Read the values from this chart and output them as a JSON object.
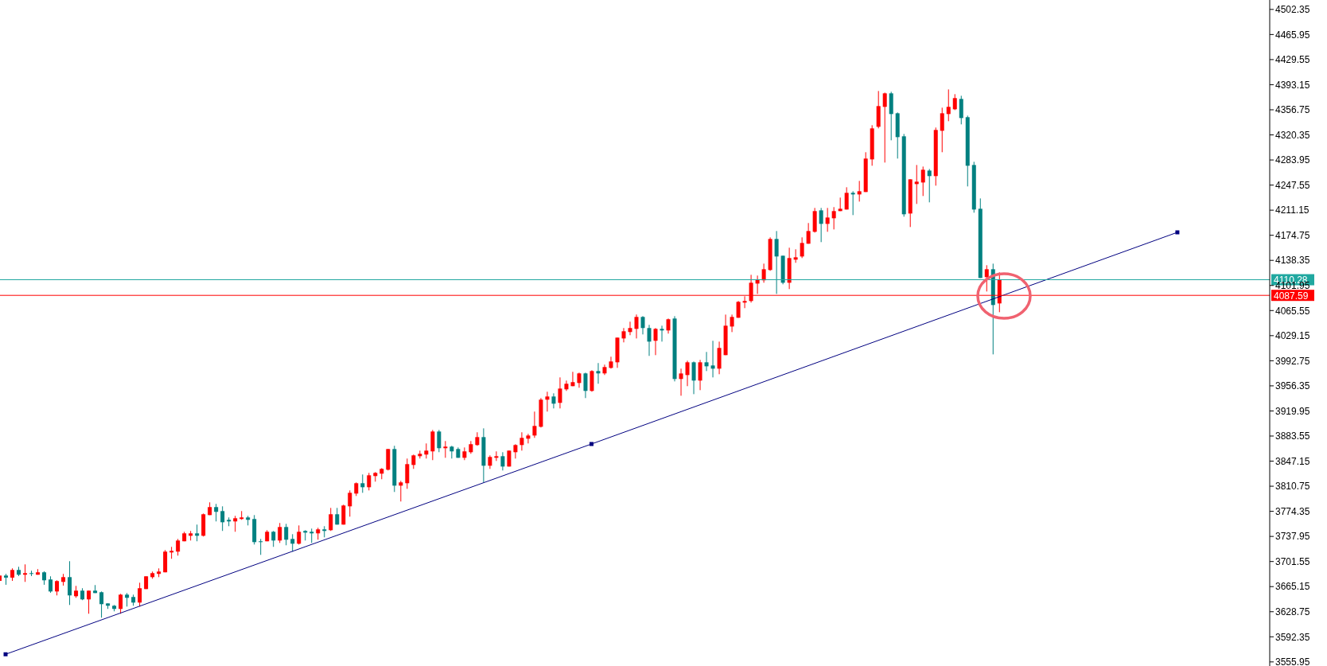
{
  "chart_data": {
    "type": "candlestick",
    "tick_labels": "y",
    "categories": [
      null,
      null,
      null,
      null,
      null,
      null,
      null,
      null,
      null,
      null,
      null,
      null,
      null,
      null,
      null,
      null,
      null,
      null,
      null,
      null,
      null,
      null,
      null,
      null,
      null,
      null,
      null,
      null,
      null,
      null,
      null,
      null,
      null,
      null,
      null,
      null,
      null,
      null,
      null,
      null,
      null,
      null,
      null,
      null,
      null,
      null,
      null,
      null,
      null,
      null,
      null,
      null,
      null,
      null,
      null,
      null,
      null,
      null,
      null,
      null,
      null,
      null,
      null,
      null,
      null,
      null,
      null,
      null,
      null,
      null,
      null,
      null,
      null,
      null,
      null,
      null,
      null,
      null,
      null,
      null,
      null,
      null,
      null,
      null,
      null,
      null,
      null,
      null,
      null,
      null,
      null,
      null,
      null,
      null,
      null,
      null,
      null,
      null,
      null,
      null,
      null,
      null,
      null,
      null,
      null,
      null,
      null,
      null,
      null,
      null,
      null,
      null,
      null,
      null,
      null,
      null,
      null,
      null,
      null,
      null,
      null,
      null,
      null,
      null,
      null,
      null,
      null,
      null,
      null,
      null,
      null,
      null,
      null,
      null,
      null,
      null,
      null,
      null,
      null,
      null,
      null,
      null,
      null,
      null,
      null,
      null,
      null,
      null,
      null,
      null,
      null,
      null,
      null,
      null,
      null,
      null,
      null,
      null,
      null,
      null,
      null,
      null,
      null,
      null,
      null,
      null,
      null,
      null,
      null,
      null,
      null,
      null,
      null,
      null,
      null,
      null,
      null,
      null,
      null,
      null,
      null,
      null,
      null,
      null,
      null,
      null,
      null,
      null,
      null,
      null,
      null,
      null,
      null,
      null,
      null,
      null,
      null,
      null,
      null,
      null
    ],
    "ohlc": [
      [
        3673.5,
        3682.0,
        3673.5,
        3681.2
      ],
      [
        3681.2,
        3683.6,
        3667.8,
        3678.2
      ],
      [
        3678.2,
        3691.6,
        3673.5,
        3689.3
      ],
      [
        3689.3,
        3693.9,
        3680.5,
        3682.4
      ],
      [
        3682.4,
        3697.4,
        3672.0,
        3684.7
      ],
      [
        3684.7,
        3688.2,
        3680.5,
        3683.6
      ],
      [
        3682.4,
        3690.5,
        3682.4,
        3685.9
      ],
      [
        3685.9,
        3687.4,
        3667.8,
        3674.3
      ],
      [
        3675.5,
        3680.1,
        3656.2,
        3658.1
      ],
      [
        3658.1,
        3674.3,
        3652.4,
        3673.2
      ],
      [
        3672.0,
        3683.6,
        3666.6,
        3678.9
      ],
      [
        3678.9,
        3702.0,
        3638.5,
        3652.4
      ],
      [
        3651.2,
        3666.2,
        3648.9,
        3659.3
      ],
      [
        3659.3,
        3662.8,
        3645.5,
        3646.6
      ],
      [
        3646.6,
        3659.3,
        3625.8,
        3659.3
      ],
      [
        3659.3,
        3667.4,
        3655.8,
        3655.8
      ],
      [
        3657.0,
        3658.1,
        3620.1,
        3639.7
      ],
      [
        3640.8,
        3640.8,
        3632.8,
        3637.4
      ],
      [
        3637.4,
        3638.5,
        3629.3,
        3632.8
      ],
      [
        3632.8,
        3654.7,
        3625.8,
        3653.5
      ],
      [
        3653.5,
        3655.8,
        3636.2,
        3648.9
      ],
      [
        3650.1,
        3653.5,
        3637.4,
        3642.0
      ],
      [
        3642.0,
        3670.8,
        3636.2,
        3662.8
      ],
      [
        3661.6,
        3680.1,
        3661.6,
        3680.1
      ],
      [
        3678.9,
        3687.0,
        3676.6,
        3684.7
      ],
      [
        3683.6,
        3691.6,
        3678.9,
        3687.0
      ],
      [
        3685.9,
        3718.2,
        3685.9,
        3715.9
      ],
      [
        3714.7,
        3722.8,
        3705.5,
        3717.0
      ],
      [
        3715.9,
        3734.3,
        3710.1,
        3732.0
      ],
      [
        3730.9,
        3744.7,
        3730.9,
        3742.4
      ],
      [
        3738.9,
        3745.9,
        3732.0,
        3742.4
      ],
      [
        3742.4,
        3755.1,
        3730.9,
        3738.9
      ],
      [
        3738.9,
        3771.2,
        3737.8,
        3770.1
      ],
      [
        3768.9,
        3787.4,
        3768.9,
        3780.5
      ],
      [
        3780.5,
        3785.1,
        3759.7,
        3773.6
      ],
      [
        3774.7,
        3781.6,
        3745.9,
        3758.5
      ],
      [
        3762.0,
        3765.5,
        3752.8,
        3759.7
      ],
      [
        3759.7,
        3767.8,
        3744.7,
        3764.3
      ],
      [
        3763.2,
        3774.7,
        3762.0,
        3765.5
      ],
      [
        3765.5,
        3767.8,
        3753.9,
        3762.0
      ],
      [
        3763.2,
        3768.9,
        3726.2,
        3729.7
      ],
      [
        3730.9,
        3734.3,
        3711.2,
        3729.7
      ],
      [
        3730.9,
        3747.0,
        3730.9,
        3744.7
      ],
      [
        3744.7,
        3745.9,
        3722.8,
        3732.0
      ],
      [
        3732.0,
        3757.4,
        3728.5,
        3751.6
      ],
      [
        3751.6,
        3756.2,
        3725.1,
        3733.2
      ],
      [
        3734.3,
        3741.2,
        3715.9,
        3727.4
      ],
      [
        3727.4,
        3753.9,
        3726.2,
        3744.7
      ],
      [
        3745.9,
        3747.0,
        3732.0,
        3743.5
      ],
      [
        3744.7,
        3749.3,
        3728.5,
        3742.4
      ],
      [
        3742.4,
        3750.5,
        3733.2,
        3748.2
      ],
      [
        3748.2,
        3752.8,
        3736.6,
        3745.9
      ],
      [
        3747.0,
        3779.3,
        3745.9,
        3770.1
      ],
      [
        3770.1,
        3779.3,
        3755.1,
        3755.1
      ],
      [
        3755.1,
        3784.0,
        3755.1,
        3782.8
      ],
      [
        3781.6,
        3804.7,
        3766.6,
        3801.2
      ],
      [
        3800.1,
        3816.3,
        3796.6,
        3815.1
      ],
      [
        3815.1,
        3827.8,
        3801.2,
        3809.3
      ],
      [
        3809.3,
        3830.1,
        3804.7,
        3826.6
      ],
      [
        3825.5,
        3831.3,
        3817.4,
        3830.1
      ],
      [
        3829.0,
        3837.0,
        3820.9,
        3835.9
      ],
      [
        3834.7,
        3864.7,
        3833.6,
        3864.7
      ],
      [
        3864.7,
        3869.4,
        3802.4,
        3811.6
      ],
      [
        3811.6,
        3818.6,
        3788.6,
        3816.3
      ],
      [
        3815.1,
        3850.9,
        3807.0,
        3842.8
      ],
      [
        3841.6,
        3856.7,
        3835.9,
        3855.5
      ],
      [
        3854.3,
        3862.4,
        3850.9,
        3857.8
      ],
      [
        3856.7,
        3872.8,
        3850.9,
        3862.4
      ],
      [
        3861.3,
        3892.4,
        3848.6,
        3890.1
      ],
      [
        3890.1,
        3892.4,
        3860.1,
        3865.9
      ],
      [
        3865.9,
        3876.3,
        3852.0,
        3868.2
      ],
      [
        3868.2,
        3869.4,
        3850.9,
        3861.3
      ],
      [
        3864.7,
        3867.0,
        3852.0,
        3852.0
      ],
      [
        3852.0,
        3867.0,
        3848.6,
        3861.3
      ],
      [
        3860.1,
        3876.3,
        3857.8,
        3871.7
      ],
      [
        3870.5,
        3889.0,
        3869.4,
        3882.0
      ],
      [
        3882.0,
        3894.7,
        3816.3,
        3840.5
      ],
      [
        3840.5,
        3855.5,
        3835.9,
        3853.2
      ],
      [
        3852.0,
        3861.3,
        3847.4,
        3854.3
      ],
      [
        3854.3,
        3860.1,
        3833.6,
        3839.3
      ],
      [
        3839.3,
        3862.4,
        3839.3,
        3862.4
      ],
      [
        3860.1,
        3871.7,
        3850.9,
        3870.5
      ],
      [
        3870.5,
        3889.0,
        3862.4,
        3880.9
      ],
      [
        3879.7,
        3886.7,
        3872.8,
        3884.3
      ],
      [
        3884.3,
        3919.0,
        3880.9,
        3898.2
      ],
      [
        3897.0,
        3938.6,
        3895.9,
        3936.3
      ],
      [
        3936.3,
        3947.8,
        3919.0,
        3940.9
      ],
      [
        3940.9,
        3945.5,
        3923.6,
        3930.5
      ],
      [
        3931.7,
        3968.6,
        3923.6,
        3952.4
      ],
      [
        3951.3,
        3964.0,
        3949.0,
        3959.4
      ],
      [
        3955.9,
        3976.7,
        3955.9,
        3961.7
      ],
      [
        3960.5,
        3975.5,
        3953.6,
        3974.4
      ],
      [
        3974.4,
        3975.5,
        3938.6,
        3949.0
      ],
      [
        3949.0,
        3979.0,
        3947.8,
        3977.8
      ],
      [
        3977.8,
        3989.4,
        3959.4,
        3974.4
      ],
      [
        3974.4,
        3987.1,
        3972.1,
        3983.6
      ],
      [
        3982.4,
        3998.6,
        3981.3,
        3991.7
      ],
      [
        3990.5,
        4026.3,
        3982.4,
        4026.3
      ],
      [
        4025.1,
        4040.2,
        4019.4,
        4035.5
      ],
      [
        4034.4,
        4049.4,
        4029.8,
        4040.2
      ],
      [
        4039.0,
        4059.8,
        4025.1,
        4056.3
      ],
      [
        4056.3,
        4057.5,
        4030.9,
        4040.2
      ],
      [
        4040.2,
        4044.8,
        3999.8,
        4020.5
      ],
      [
        4021.7,
        4040.2,
        4000.9,
        4039.0
      ],
      [
        4039.0,
        4043.6,
        4020.5,
        4036.7
      ],
      [
        4036.7,
        4054.0,
        4032.1,
        4052.9
      ],
      [
        4054.0,
        4057.4,
        3962.8,
        3966.3
      ],
      [
        3966.3,
        3981.3,
        3942.0,
        3974.3
      ],
      [
        3972.0,
        3992.8,
        3955.9,
        3990.5
      ],
      [
        3990.5,
        3991.7,
        3944.3,
        3964.0
      ],
      [
        3964.0,
        3994.0,
        3950.1,
        3990.5
      ],
      [
        3990.5,
        4005.5,
        3977.8,
        3984.7
      ],
      [
        3985.9,
        4021.7,
        3968.6,
        3981.3
      ],
      [
        3981.3,
        4020.5,
        3973.2,
        4011.3
      ],
      [
        4000.9,
        4059.7,
        4000.9,
        4043.6
      ],
      [
        4042.4,
        4059.7,
        4034.3,
        4056.3
      ],
      [
        4055.1,
        4079.4,
        4055.1,
        4078.2
      ],
      [
        4077.1,
        4086.3,
        4069.0,
        4079.4
      ],
      [
        4079.4,
        4117.4,
        4077.1,
        4105.9
      ],
      [
        4104.7,
        4116.3,
        4089.7,
        4110.5
      ],
      [
        4109.4,
        4133.6,
        4105.9,
        4125.5
      ],
      [
        4124.4,
        4171.7,
        4123.2,
        4169.4
      ],
      [
        4169.4,
        4180.9,
        4089.7,
        4144.0
      ],
      [
        4145.1,
        4145.1,
        4103.6,
        4105.9
      ],
      [
        4105.9,
        4156.7,
        4096.7,
        4141.7
      ],
      [
        4139.4,
        4154.4,
        4134.8,
        4142.8
      ],
      [
        4144.0,
        4171.7,
        4141.7,
        4163.6
      ],
      [
        4162.5,
        4192.5,
        4162.5,
        4180.9
      ],
      [
        4179.8,
        4214.4,
        4178.6,
        4209.8
      ],
      [
        4210.9,
        4214.4,
        4164.8,
        4191.3
      ],
      [
        4191.3,
        4214.4,
        4179.8,
        4200.5
      ],
      [
        4199.4,
        4215.6,
        4183.2,
        4209.8
      ],
      [
        4209.8,
        4229.4,
        4209.8,
        4213.2
      ],
      [
        4212.1,
        4244.4,
        4212.1,
        4236.3
      ],
      [
        4236.3,
        4238.6,
        4204.0,
        4234.0
      ],
      [
        4234.0,
        4253.6,
        4223.6,
        4238.6
      ],
      [
        4237.5,
        4295.2,
        4237.5,
        4286.0
      ],
      [
        4284.8,
        4334.4,
        4275.6,
        4329.8
      ],
      [
        4332.1,
        4384.0,
        4329.8,
        4362.1
      ],
      [
        4361.0,
        4381.7,
        4280.2,
        4380.6
      ],
      [
        4380.6,
        4382.9,
        4312.5,
        4350.6
      ],
      [
        4351.7,
        4352.9,
        4286.0,
        4317.1
      ],
      [
        4318.3,
        4321.7,
        4201.7,
        4205.2
      ],
      [
        4206.3,
        4255.9,
        4186.7,
        4255.9
      ],
      [
        4249.0,
        4276.7,
        4220.2,
        4252.5
      ],
      [
        4251.3,
        4274.4,
        4231.7,
        4269.8
      ],
      [
        4268.6,
        4270.9,
        4222.5,
        4260.6
      ],
      [
        4260.6,
        4331.0,
        4246.7,
        4327.5
      ],
      [
        4326.3,
        4359.8,
        4295.2,
        4351.7
      ],
      [
        4350.6,
        4386.3,
        4340.2,
        4361.0
      ],
      [
        4357.5,
        4379.4,
        4356.3,
        4373.7
      ],
      [
        4372.5,
        4377.1,
        4335.6,
        4344.8
      ],
      [
        4346.0,
        4348.3,
        4245.6,
        4275.6
      ],
      [
        4276.7,
        4281.3,
        4207.5,
        4212.1
      ],
      [
        4213.2,
        4228.2,
        4112.8,
        4112.8
      ],
      [
        4114.0,
        4131.3,
        4093.2,
        4125.5
      ],
      [
        4125.5,
        4133.6,
        4002.0,
        4073.6
      ],
      [
        4075.9,
        4120.9,
        4063.2,
        4110.5
      ],
      null,
      null,
      null,
      null,
      null,
      null,
      null,
      null,
      null,
      null,
      null,
      null,
      null,
      null,
      null,
      null,
      null,
      null,
      null,
      null,
      null,
      null,
      null,
      null,
      null,
      null,
      null,
      null,
      null,
      null,
      null,
      null,
      null,
      null,
      null,
      null,
      null,
      null,
      null,
      null,
      null,
      null
    ],
    "colors": [
      "#ff0000",
      "#008080",
      "#ff0000",
      "#008080",
      "#ff0000",
      "#008080",
      "#ff0000",
      "#008080",
      "#008080",
      "#ff0000",
      "#ff0000",
      "#008080",
      "#ff0000",
      "#008080",
      "#ff0000",
      "#008080",
      "#008080",
      "#008080",
      "#008080",
      "#ff0000",
      "#008080",
      "#008080",
      "#ff0000",
      "#ff0000",
      "#ff0000",
      "#ff0000",
      "#ff0000",
      "#ff0000",
      "#ff0000",
      "#ff0000",
      "#ff0000",
      "#008080",
      "#ff0000",
      "#ff0000",
      "#008080",
      "#008080",
      "#008080",
      "#ff0000",
      "#ff0000",
      "#008080",
      "#008080",
      "#008080",
      "#ff0000",
      "#008080",
      "#ff0000",
      "#008080",
      "#008080",
      "#ff0000",
      "#008080",
      "#008080",
      "#ff0000",
      "#008080",
      "#ff0000",
      "#008080",
      "#ff0000",
      "#ff0000",
      "#ff0000",
      "#008080",
      "#ff0000",
      "#ff0000",
      "#ff0000",
      "#ff0000",
      "#008080",
      "#ff0000",
      "#ff0000",
      "#ff0000",
      "#ff0000",
      "#ff0000",
      "#ff0000",
      "#008080",
      "#ff0000",
      "#008080",
      "#008080",
      "#ff0000",
      "#ff0000",
      "#ff0000",
      "#008080",
      "#ff0000",
      "#ff0000",
      "#008080",
      "#ff0000",
      "#ff0000",
      "#ff0000",
      "#ff0000",
      "#ff0000",
      "#ff0000",
      "#ff0000",
      "#008080",
      "#ff0000",
      "#ff0000",
      "#ff0000",
      "#ff0000",
      "#008080",
      "#ff0000",
      "#008080",
      "#ff0000",
      "#ff0000",
      "#ff0000",
      "#ff0000",
      "#ff0000",
      "#ff0000",
      "#008080",
      "#008080",
      "#ff0000",
      "#008080",
      "#ff0000",
      "#008080",
      "#ff0000",
      "#ff0000",
      "#008080",
      "#ff0000",
      "#008080",
      "#008080",
      "#ff0000",
      "#ff0000",
      "#ff0000",
      "#ff0000",
      "#ff0000",
      "#ff0000",
      "#ff0000",
      "#ff0000",
      "#ff0000",
      "#008080",
      "#008080",
      "#ff0000",
      "#ff0000",
      "#ff0000",
      "#ff0000",
      "#ff0000",
      "#008080",
      "#ff0000",
      "#ff0000",
      "#ff0000",
      "#ff0000",
      "#008080",
      "#ff0000",
      "#ff0000",
      "#ff0000",
      "#ff0000",
      "#ff0000",
      "#008080",
      "#008080",
      "#008080",
      "#ff0000",
      "#ff0000",
      "#ff0000",
      "#008080",
      "#ff0000",
      "#ff0000",
      "#ff0000",
      "#ff0000",
      "#008080",
      "#008080",
      "#008080",
      "#008080",
      "#ff0000",
      "#008080",
      "#ff0000",
      null,
      null,
      null,
      null,
      null,
      null,
      null,
      null,
      null,
      null,
      null,
      null,
      null,
      null,
      null,
      null,
      null,
      null,
      null,
      null,
      null,
      null,
      null,
      null,
      null,
      null,
      null,
      null,
      null,
      null,
      null,
      null,
      null,
      null,
      null,
      null,
      null,
      null,
      null,
      null,
      null,
      null
    ],
    "series": [
      {
        "type": "line",
        "color": "#000080",
        "marker": "square",
        "values": [
          null,
          3567,
          null,
          null,
          null,
          null,
          null,
          null,
          null,
          null,
          null,
          null,
          null,
          null,
          null,
          null,
          null,
          null,
          null,
          null,
          null,
          null,
          null,
          null,
          null,
          null,
          null,
          null,
          null,
          null,
          null,
          null,
          null,
          null,
          null,
          null,
          null,
          null,
          null,
          null,
          null,
          null,
          null,
          null,
          null,
          null,
          null,
          null,
          null,
          null,
          null,
          null,
          null,
          null,
          null,
          null,
          null,
          null,
          null,
          null,
          null,
          null,
          null,
          null,
          null,
          null,
          null,
          null,
          null,
          null,
          null,
          null,
          null,
          null,
          null,
          null,
          null,
          null,
          null,
          null,
          null,
          null,
          null,
          null,
          null,
          null,
          null,
          null,
          null,
          null,
          null,
          null,
          null,
          3872,
          null,
          null,
          null,
          null,
          null,
          null,
          null,
          null,
          null,
          null,
          null,
          null,
          null,
          null,
          null,
          null,
          null,
          null,
          null,
          null,
          null,
          null,
          null,
          null,
          null,
          null,
          null,
          null,
          null,
          null,
          null,
          null,
          null,
          null,
          null,
          null,
          null,
          null,
          null,
          null,
          null,
          null,
          null,
          null,
          null,
          null,
          null,
          null,
          null,
          null,
          null,
          null,
          null,
          null,
          null,
          null,
          null,
          null,
          null,
          null,
          null,
          null,
          null,
          null,
          null,
          null,
          null,
          null,
          null,
          null,
          null,
          null,
          null,
          null,
          null,
          null,
          null,
          null,
          null,
          null,
          null,
          null,
          null,
          null,
          null,
          null,
          null,
          null,
          null,
          null,
          null,
          4179,
          null,
          null,
          null,
          null,
          null,
          null,
          null,
          null,
          null,
          null,
          null,
          null,
          null,
          null
        ]
      }
    ],
    "ref_lines": [
      {
        "axis": "y",
        "value": 4110.28,
        "label": "4110.28",
        "color": "#20a8a0"
      },
      {
        "axis": "y",
        "value": 4087.59,
        "label": "4087.59",
        "color": "#ff0000"
      }
    ],
    "ylim": [
      3550,
      4516
    ],
    "yticks": [
      3555.95,
      3592.35,
      3628.75,
      3665.15,
      3701.55,
      3737.95,
      3774.35,
      3810.75,
      3847.15,
      3883.55,
      3919.95,
      3956.35,
      3992.75,
      4029.15,
      4065.55,
      4101.95,
      4138.35,
      4174.75,
      4211.15,
      4247.55,
      4283.95,
      4320.35,
      4356.75,
      4393.15,
      4429.55,
      4465.95,
      4502.35
    ]
  }
}
